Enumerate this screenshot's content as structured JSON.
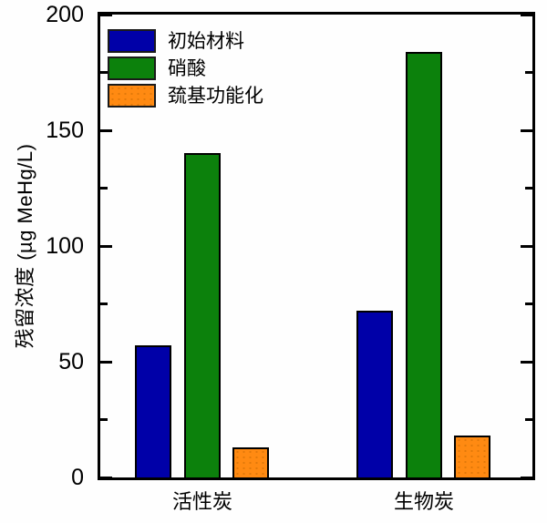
{
  "chart_data": {
    "type": "bar",
    "title": "",
    "xlabel": "",
    "ylabel": "残留浓度 (µg MeHg/L)",
    "categories": [
      "活性炭",
      "生物炭"
    ],
    "series": [
      {
        "name": "初始材料",
        "color": "#0000A8",
        "values": [
          57,
          72
        ],
        "texture": "solid"
      },
      {
        "name": "硝酸",
        "color": "#0C810C",
        "values": [
          140,
          184
        ],
        "texture": "solid"
      },
      {
        "name": "巯基功能化",
        "color": "#FF8A12",
        "values": [
          13,
          18
        ],
        "texture": "dotted"
      }
    ],
    "ylim": [
      0,
      200
    ],
    "y_major_ticks": [
      0,
      50,
      100,
      150,
      200
    ],
    "y_minor_ticks": [
      25,
      75,
      125,
      175
    ],
    "grid": false,
    "legend_position": "top-left",
    "frame": true
  },
  "colors": {
    "axis": "#000000",
    "text": "#000000",
    "background": "#fefefe"
  }
}
